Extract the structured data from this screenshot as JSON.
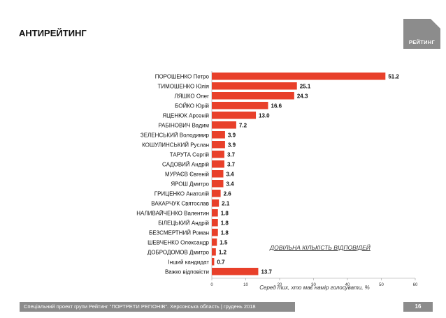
{
  "page": {
    "title": "АНТИРЕЙТИНГ",
    "logo_text": "РЕЙТИНГ",
    "note": "ДОВІЛЬНА КІЛЬКІСТЬ ВІДПОВІДЕЙ",
    "footer": "Спеціальний проект групи Рейтинг \"ПОРТРЕТИ РЕГІОНІВ\". Херсонська область | грудень 2018",
    "page_number": "16"
  },
  "colors": {
    "bar": "#e8402a",
    "gray": "#8c8c8c"
  },
  "chart_data": {
    "type": "bar",
    "orientation": "horizontal",
    "title": "АНТИРЕЙТИНГ",
    "xlabel": "Серед тих, хто має намір голосувати, %",
    "xlim": [
      0,
      60
    ],
    "xticks": [
      0,
      10,
      20,
      30,
      40,
      50,
      60
    ],
    "grid": false,
    "categories": [
      "ПОРОШЕНКО Петро",
      "ТИМОШЕНКО Юлія",
      "ЛЯШКО Олег",
      "БОЙКО Юрій",
      "ЯЦЕНЮК Арсеній",
      "РАБІНОВИЧ Вадим",
      "ЗЕЛЕНСЬКИЙ Володимир",
      "КОШУЛИНСЬКИЙ Руслан",
      "ТАРУТА Сергій",
      "САДОВИЙ Андрій",
      "МУРАЄВ Євгеній",
      "ЯРОШ Дмитро",
      "ГРИЦЕНКО Анатолій",
      "ВАКАРЧУК Святослав",
      "НАЛИВАЙЧЕНКО Валентин",
      "БІЛЕЦЬКИЙ Андрій",
      "БЕЗСМЕРТНИЙ Роман",
      "ШЕВЧЕНКО Олександр",
      "ДОБРОДОМОВ Дмитро",
      "Інший кандидат",
      "Важко відповісти"
    ],
    "values": [
      51.2,
      25.1,
      24.3,
      16.6,
      13.0,
      7.2,
      3.9,
      3.9,
      3.7,
      3.7,
      3.4,
      3.4,
      2.6,
      2.1,
      1.8,
      1.8,
      1.8,
      1.5,
      1.2,
      0.7,
      13.7
    ],
    "value_labels": [
      "51.2",
      "25.1",
      "24.3",
      "16.6",
      "13.0",
      "7.2",
      "3.9",
      "3.9",
      "3.7",
      "3.7",
      "3.4",
      "3.4",
      "2.6",
      "2.1",
      "1.8",
      "1.8",
      "1.8",
      "1.5",
      "1.2",
      "0.7",
      "13.7"
    ]
  }
}
